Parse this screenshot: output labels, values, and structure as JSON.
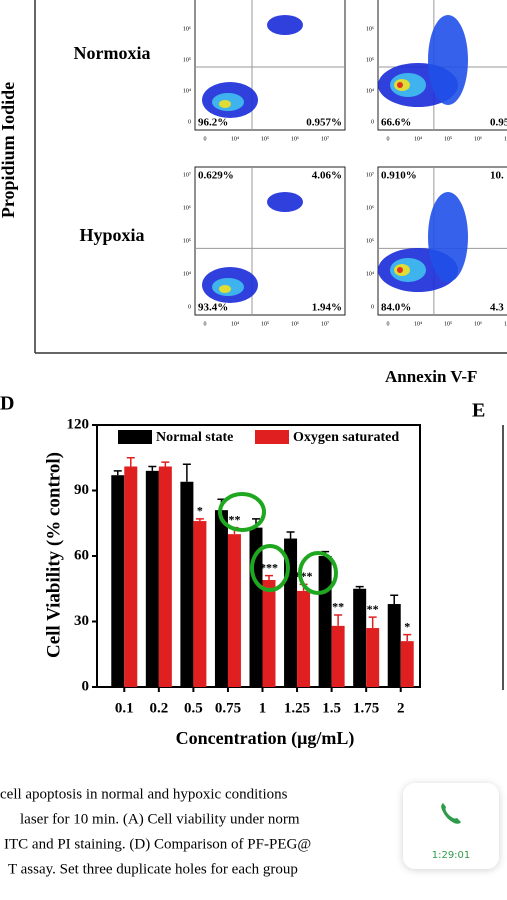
{
  "flow": {
    "y_label": "Propidium Iodide",
    "x_label": "Annexin V-F",
    "yticks": [
      "10⁷",
      "10⁶",
      "10⁵",
      "10⁴",
      "0"
    ],
    "xticks": [
      "0",
      "10⁴",
      "10⁵",
      "10⁶",
      "10⁷"
    ],
    "rows": [
      "Normoxia",
      "Hypoxia"
    ],
    "panels": [
      {
        "ll": "96.2%",
        "lr": "0.957%"
      },
      {
        "ll": "66.6%",
        "lr": "0.95"
      },
      {
        "ul": "0.629%",
        "ur": "4.06%",
        "ll": "93.4%",
        "lr": "1.94%"
      },
      {
        "ul": "0.910%",
        "ur": "10.",
        "ll": "84.0%",
        "lr": "4.3"
      }
    ]
  },
  "chart_data": {
    "type": "bar",
    "panel_label": "D",
    "y_label": "Cell Viability (% control)",
    "x_label": "Concentration (μg/mL)",
    "categories": [
      "0.1",
      "0.2",
      "0.5",
      "0.75",
      "1",
      "1.25",
      "1.5",
      "1.75",
      "2"
    ],
    "series": [
      {
        "name": "Normal state",
        "color": "#000000",
        "values": [
          97,
          99,
          94,
          81,
          73,
          68,
          60,
          45,
          38
        ],
        "errors": [
          2,
          2,
          8,
          5,
          4,
          3,
          2,
          1,
          4
        ]
      },
      {
        "name": "Oxygen saturated",
        "color": "#e02020",
        "values": [
          101,
          101,
          76,
          70,
          49,
          44,
          28,
          27,
          21
        ],
        "errors": [
          4,
          2,
          1,
          3,
          2,
          3,
          5,
          5,
          3
        ]
      }
    ],
    "significance": [
      null,
      null,
      "*",
      "**",
      "***",
      "***",
      "**",
      "**",
      "*"
    ],
    "ylim": [
      0,
      120
    ],
    "yticks": [
      0,
      30,
      60,
      90,
      120
    ],
    "legend": "top"
  },
  "panel_e": {
    "label": "E"
  },
  "caption": [
    "cell apoptosis in normal and hypoxic conditions",
    "laser for 10 min. (A) Cell viability under norm",
    "ITC and PI staining. (D) Comparison of PF-PEG@",
    "T assay. Set three duplicate holes for each group"
  ],
  "call": {
    "time": "1:29:01"
  }
}
